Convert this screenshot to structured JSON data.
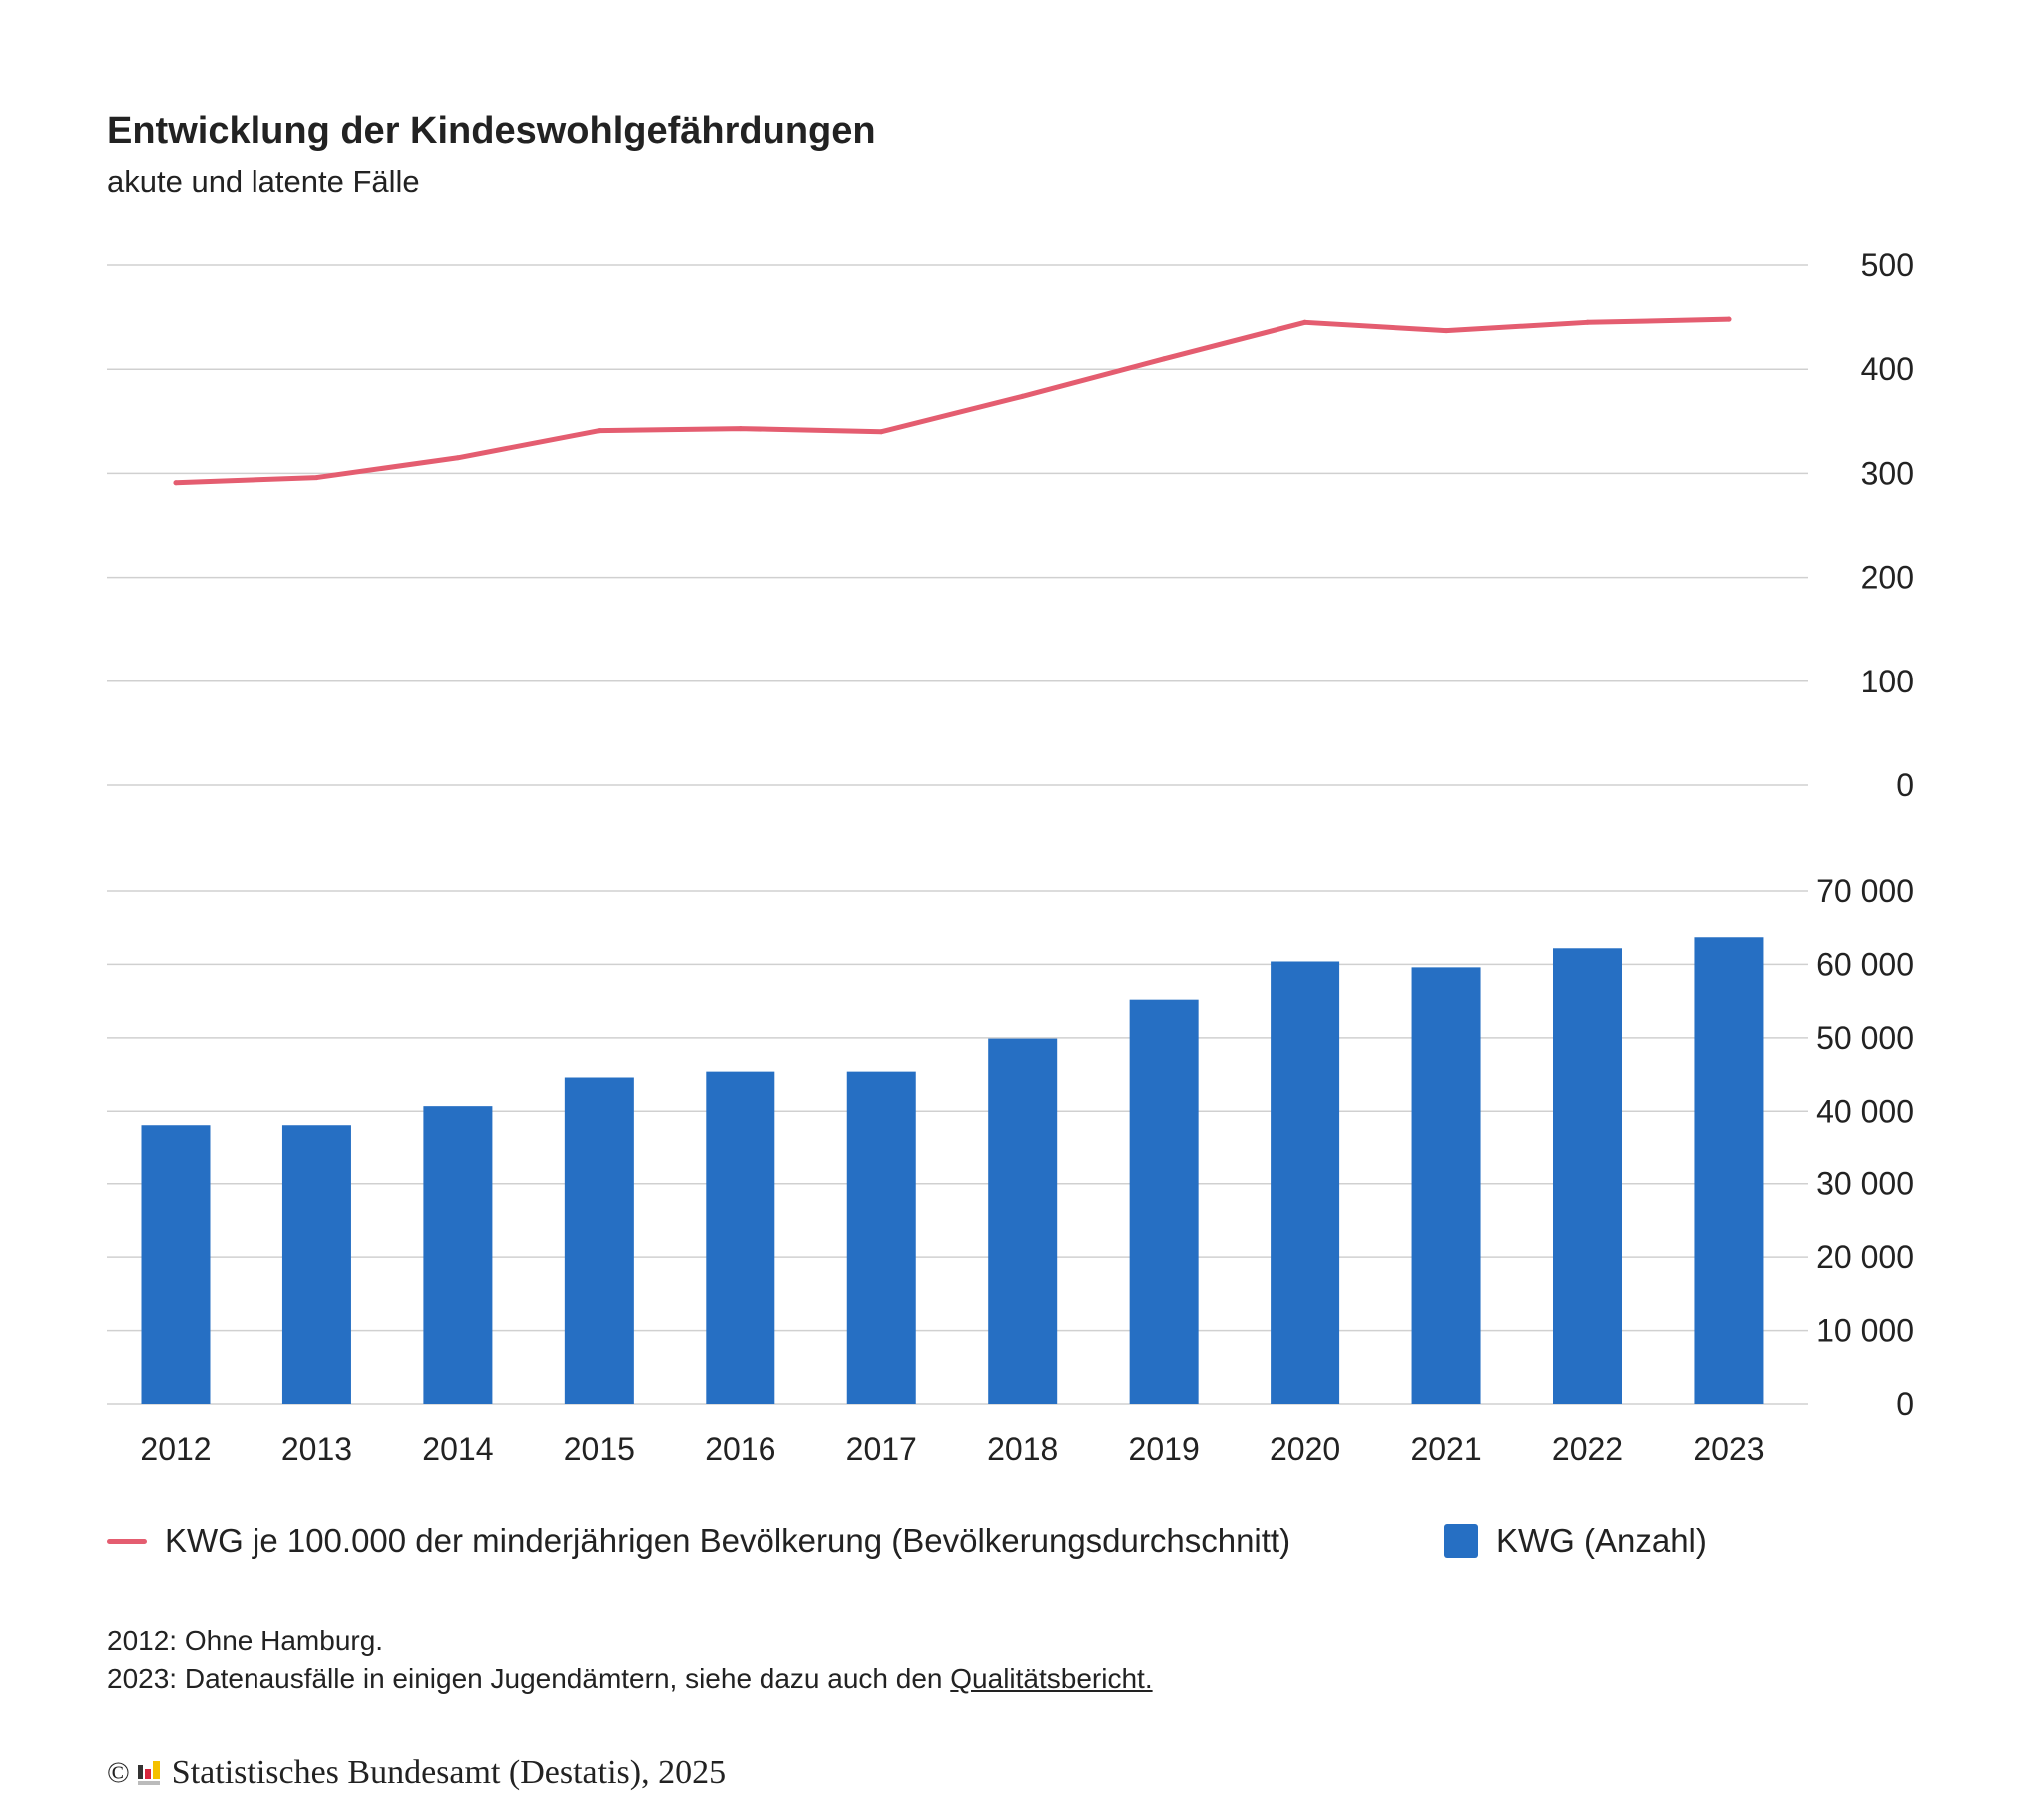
{
  "header": {
    "title": "Entwicklung der Kindeswohlgefährdungen",
    "subtitle": "akute und latente Fälle"
  },
  "colors": {
    "line": "#e45d70",
    "bar": "#266fc3",
    "grid": "#d0d0d0",
    "text": "#222222"
  },
  "chart_data": [
    {
      "type": "line",
      "name": "KWG je 100.000 der minderjährigen Bevölkerung (Bevölkerungsdurchschnitt)",
      "categories": [
        "2012",
        "2013",
        "2014",
        "2015",
        "2016",
        "2017",
        "2018",
        "2019",
        "2020",
        "2021",
        "2022",
        "2023"
      ],
      "values": [
        291,
        296,
        315,
        341,
        343,
        340,
        374,
        410,
        445,
        437,
        445,
        448
      ],
      "ylim": [
        0,
        500
      ],
      "yticks": [
        0,
        100,
        200,
        300,
        400,
        500
      ],
      "ytick_labels": [
        "0",
        "100",
        "200",
        "300",
        "400",
        "500"
      ],
      "yaxis_side": "right",
      "grid": true
    },
    {
      "type": "bar",
      "name": "KWG (Anzahl)",
      "categories": [
        "2012",
        "2013",
        "2014",
        "2015",
        "2016",
        "2017",
        "2018",
        "2019",
        "2020",
        "2021",
        "2022",
        "2023"
      ],
      "values": [
        38100,
        38100,
        40700,
        44600,
        45400,
        45400,
        49900,
        55200,
        60400,
        59600,
        62200,
        63700
      ],
      "ylim": [
        0,
        70000
      ],
      "yticks": [
        0,
        10000,
        20000,
        30000,
        40000,
        50000,
        60000,
        70000
      ],
      "ytick_labels": [
        "0",
        "10 000",
        "20 000",
        "30 000",
        "40 000",
        "50 000",
        "60 000",
        "70 000"
      ],
      "yaxis_side": "right",
      "grid": true
    }
  ],
  "x_labels": [
    "2012",
    "2013",
    "2014",
    "2015",
    "2016",
    "2017",
    "2018",
    "2019",
    "2020",
    "2021",
    "2022",
    "2023"
  ],
  "legend": {
    "position": "bottom",
    "items": [
      {
        "label": "KWG je 100.000 der minderjährigen Bevölkerung (Bevölkerungsdurchschnitt)",
        "marker": "line"
      },
      {
        "label": "KWG (Anzahl)",
        "marker": "square"
      }
    ]
  },
  "notes": {
    "line1": "2012: Ohne Hamburg.",
    "line2_prefix": "2023: Datenausfälle in einigen Jugendämtern, siehe dazu auch den ",
    "line2_link": "Qualitätsbericht."
  },
  "footer": {
    "copyright_symbol": "©",
    "source": "Statistisches Bundesamt (Destatis), 2025",
    "logo_icon": "destatis-logo-icon"
  }
}
